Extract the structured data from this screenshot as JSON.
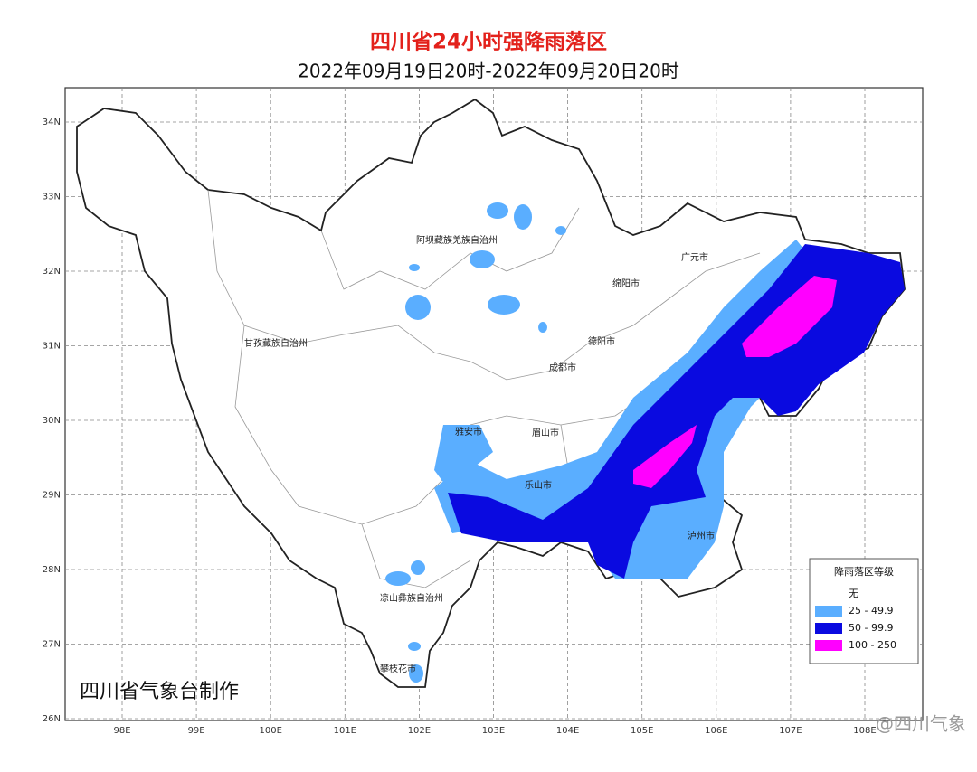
{
  "header": {
    "title": "四川省24小时强降雨落区",
    "subtitle": "2022年09月19日20时-2022年09月20日20时"
  },
  "map": {
    "lat_ticks": [
      "34N",
      "33N",
      "32N",
      "31N",
      "30N",
      "29N",
      "28N",
      "27N",
      "26N"
    ],
    "lon_ticks": [
      "98E",
      "99E",
      "100E",
      "101E",
      "102E",
      "103E",
      "104E",
      "105E",
      "106E",
      "107E",
      "108E"
    ],
    "regions": [
      "阿坝藏族羌族自治州",
      "甘孜藏族自治州",
      "广元市",
      "绵阳市",
      "德阳市",
      "成都市",
      "雅安市",
      "眉山市",
      "乐山市",
      "泸州市",
      "凉山彝族自治州",
      "攀枝花市"
    ],
    "credit": "四川省气象台制作"
  },
  "legend": {
    "title": "降雨落区等级",
    "items": [
      {
        "label": "无",
        "color": "#ffffff"
      },
      {
        "label": "25 - 49.9",
        "color": "#5aaeff"
      },
      {
        "label": "50 - 99.9",
        "color": "#0a0ae0"
      },
      {
        "label": "100 - 250",
        "color": "#ff00ff"
      }
    ]
  },
  "watermark": "@四川气象"
}
